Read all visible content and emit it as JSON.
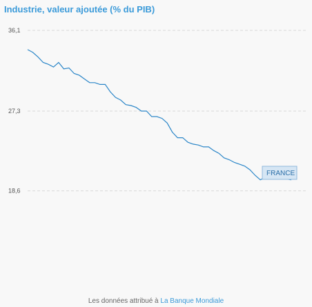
{
  "header": {
    "title": "Industrie, valeur ajoutée (% du PIB)"
  },
  "footer": {
    "prefix": "Les données attribué à ",
    "link": "La Banque Mondiale"
  },
  "colors": {
    "title": "#3a9ad9",
    "series": "#2b86c8",
    "grid": "#d8d8d8"
  },
  "chart_data": {
    "type": "line",
    "title": "Industrie, valeur ajoutée (% du PIB)",
    "xlabel": "",
    "ylabel": "",
    "ylim": [
      10,
      36.1
    ],
    "y_ticks": [
      "36,1",
      "27,3",
      "18,6"
    ],
    "y_tick_values": [
      36.1,
      27.3,
      18.6
    ],
    "grid": true,
    "series": [
      {
        "name": "FRANCE",
        "values": [
          34.0,
          33.7,
          33.2,
          32.6,
          32.4,
          32.1,
          32.6,
          31.9,
          32.0,
          31.4,
          31.2,
          30.8,
          30.4,
          30.4,
          30.2,
          30.2,
          29.4,
          28.8,
          28.5,
          28.0,
          27.9,
          27.7,
          27.3,
          27.3,
          26.7,
          26.7,
          26.5,
          26.0,
          25.0,
          24.4,
          24.4,
          23.9,
          23.7,
          23.6,
          23.4,
          23.4,
          23.0,
          22.7,
          22.2,
          22.0,
          21.7,
          21.5,
          21.3,
          20.9,
          20.3,
          19.8,
          20.1,
          20.0,
          20.1,
          19.9,
          19.9,
          19.8
        ]
      }
    ]
  }
}
